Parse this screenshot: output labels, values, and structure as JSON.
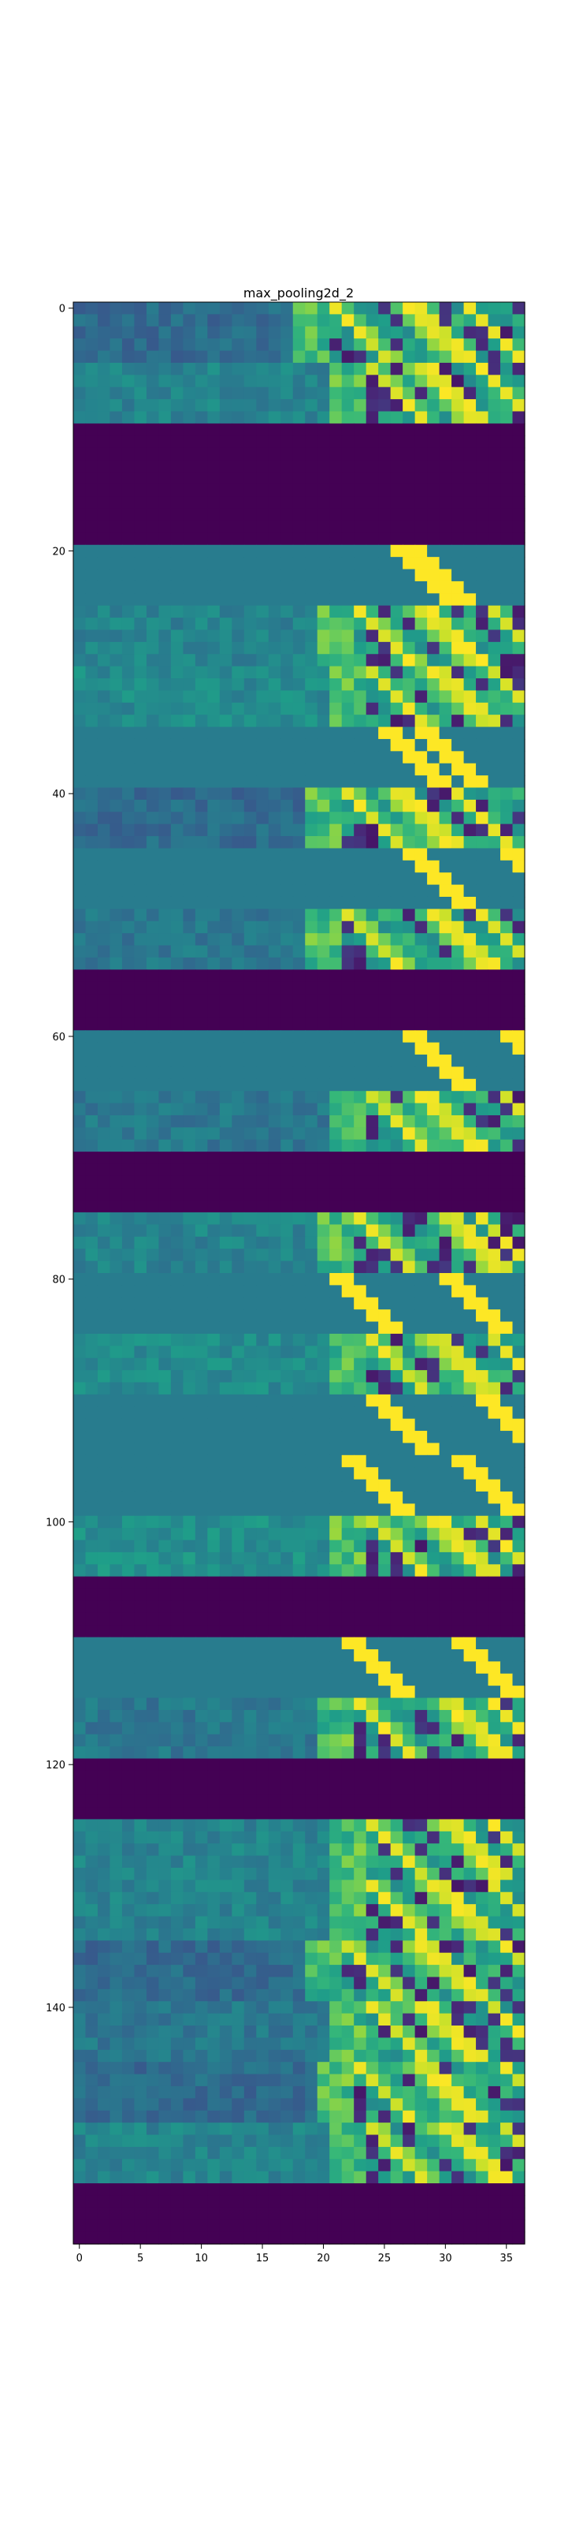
{
  "chart_data": {
    "type": "heatmap",
    "title": "max_pooling2d_2",
    "xlabel": "",
    "ylabel": "",
    "colormap": "viridis",
    "n_cols": 37,
    "n_rows": 160,
    "xlim": [
      -0.5,
      36.5
    ],
    "ylim": [
      159.5,
      -0.5
    ],
    "x_ticks": [
      0,
      5,
      10,
      15,
      20,
      25,
      30,
      35
    ],
    "x_tick_labels": [
      "0",
      "5",
      "10",
      "15",
      "20",
      "25",
      "30",
      "35"
    ],
    "y_ticks": [
      0,
      20,
      40,
      60,
      80,
      100,
      120,
      140
    ],
    "y_tick_labels": [
      "0",
      "20",
      "40",
      "60",
      "80",
      "100",
      "120",
      "140"
    ],
    "grid": false,
    "legend": "none",
    "zero_row_bands": [
      [
        10,
        19
      ],
      [
        55,
        59
      ],
      [
        70,
        74
      ],
      [
        105,
        109
      ],
      [
        120,
        124
      ],
      [
        155,
        159
      ]
    ],
    "row_blocks": [
      {
        "rows": [
          0,
          4
        ],
        "level": 0.35,
        "style": "active",
        "edge_col": 20,
        "stripe_cols": [
          27,
          32
        ]
      },
      {
        "rows": [
          5,
          9
        ],
        "level": 0.45,
        "style": "active",
        "edge_col": 23,
        "stripe_cols": [
          28,
          33
        ]
      },
      {
        "rows": [
          20,
          24
        ],
        "level": 0.42,
        "style": "flat",
        "edge_col": 26,
        "stripe_cols": [
          27,
          36
        ]
      },
      {
        "rows": [
          25,
          29
        ],
        "level": 0.45,
        "style": "active",
        "edge_col": 22,
        "stripe_cols": [
          28,
          34
        ]
      },
      {
        "rows": [
          30,
          34
        ],
        "level": 0.48,
        "style": "active",
        "edge_col": 23,
        "stripe_cols": [
          29,
          34
        ]
      },
      {
        "rows": [
          35,
          39
        ],
        "level": 0.42,
        "style": "flat",
        "edge_col": 25,
        "stripe_cols": [
          28,
          34
        ]
      },
      {
        "rows": [
          40,
          44
        ],
        "level": 0.35,
        "style": "active",
        "edge_col": 21,
        "stripe_cols": [
          26,
          31
        ]
      },
      {
        "rows": [
          45,
          49
        ],
        "level": 0.42,
        "style": "flat",
        "edge_col": 27,
        "stripe_cols": [
          35,
          36
        ]
      },
      {
        "rows": [
          50,
          54
        ],
        "level": 0.4,
        "style": "active",
        "edge_col": 21,
        "stripe_cols": [
          29,
          33
        ]
      },
      {
        "rows": [
          60,
          64
        ],
        "level": 0.42,
        "style": "flat",
        "edge_col": 27,
        "stripe_cols": [
          35,
          36
        ]
      },
      {
        "rows": [
          65,
          69
        ],
        "level": 0.4,
        "style": "active",
        "edge_col": 23,
        "stripe_cols": [
          28,
          35
        ]
      },
      {
        "rows": [
          75,
          79
        ],
        "level": 0.45,
        "style": "active",
        "edge_col": 22,
        "stripe_cols": [
          30,
          33
        ]
      },
      {
        "rows": [
          80,
          84
        ],
        "level": 0.42,
        "style": "flat",
        "edge_col": 21,
        "stripe_cols": [
          30,
          33
        ]
      },
      {
        "rows": [
          85,
          89
        ],
        "level": 0.48,
        "style": "active",
        "edge_col": 23,
        "stripe_cols": [
          29,
          34
        ]
      },
      {
        "rows": [
          90,
          94
        ],
        "level": 0.42,
        "style": "flat",
        "edge_col": 24,
        "stripe_cols": [
          33,
          35
        ]
      },
      {
        "rows": [
          95,
          99
        ],
        "level": 0.42,
        "style": "flat",
        "edge_col": 22,
        "stripe_cols": [
          31,
          35
        ]
      },
      {
        "rows": [
          100,
          104
        ],
        "level": 0.5,
        "style": "active",
        "edge_col": 23,
        "stripe_cols": [
          29,
          33
        ]
      },
      {
        "rows": [
          110,
          114
        ],
        "level": 0.42,
        "style": "flat",
        "edge_col": 22,
        "stripe_cols": [
          31,
          34
        ]
      },
      {
        "rows": [
          115,
          119
        ],
        "level": 0.4,
        "style": "active",
        "edge_col": 22,
        "stripe_cols": [
          30,
          34
        ]
      },
      {
        "rows": [
          125,
          129
        ],
        "level": 0.45,
        "style": "active",
        "edge_col": 23,
        "stripe_cols": [
          30,
          34
        ]
      },
      {
        "rows": [
          130,
          134
        ],
        "level": 0.45,
        "style": "active",
        "edge_col": 23,
        "stripe_cols": [
          29,
          34
        ]
      },
      {
        "rows": [
          135,
          139
        ],
        "level": 0.35,
        "style": "active",
        "edge_col": 21,
        "stripe_cols": [
          28,
          35
        ]
      },
      {
        "rows": [
          140,
          144
        ],
        "level": 0.4,
        "style": "active",
        "edge_col": 23,
        "stripe_cols": [
          28,
          34
        ]
      },
      {
        "rows": [
          145,
          149
        ],
        "level": 0.35,
        "style": "active",
        "edge_col": 22,
        "stripe_cols": [
          28,
          35
        ]
      },
      {
        "rows": [
          150,
          154
        ],
        "level": 0.45,
        "style": "active",
        "edge_col": 23,
        "stripe_cols": [
          30,
          35
        ]
      }
    ]
  }
}
